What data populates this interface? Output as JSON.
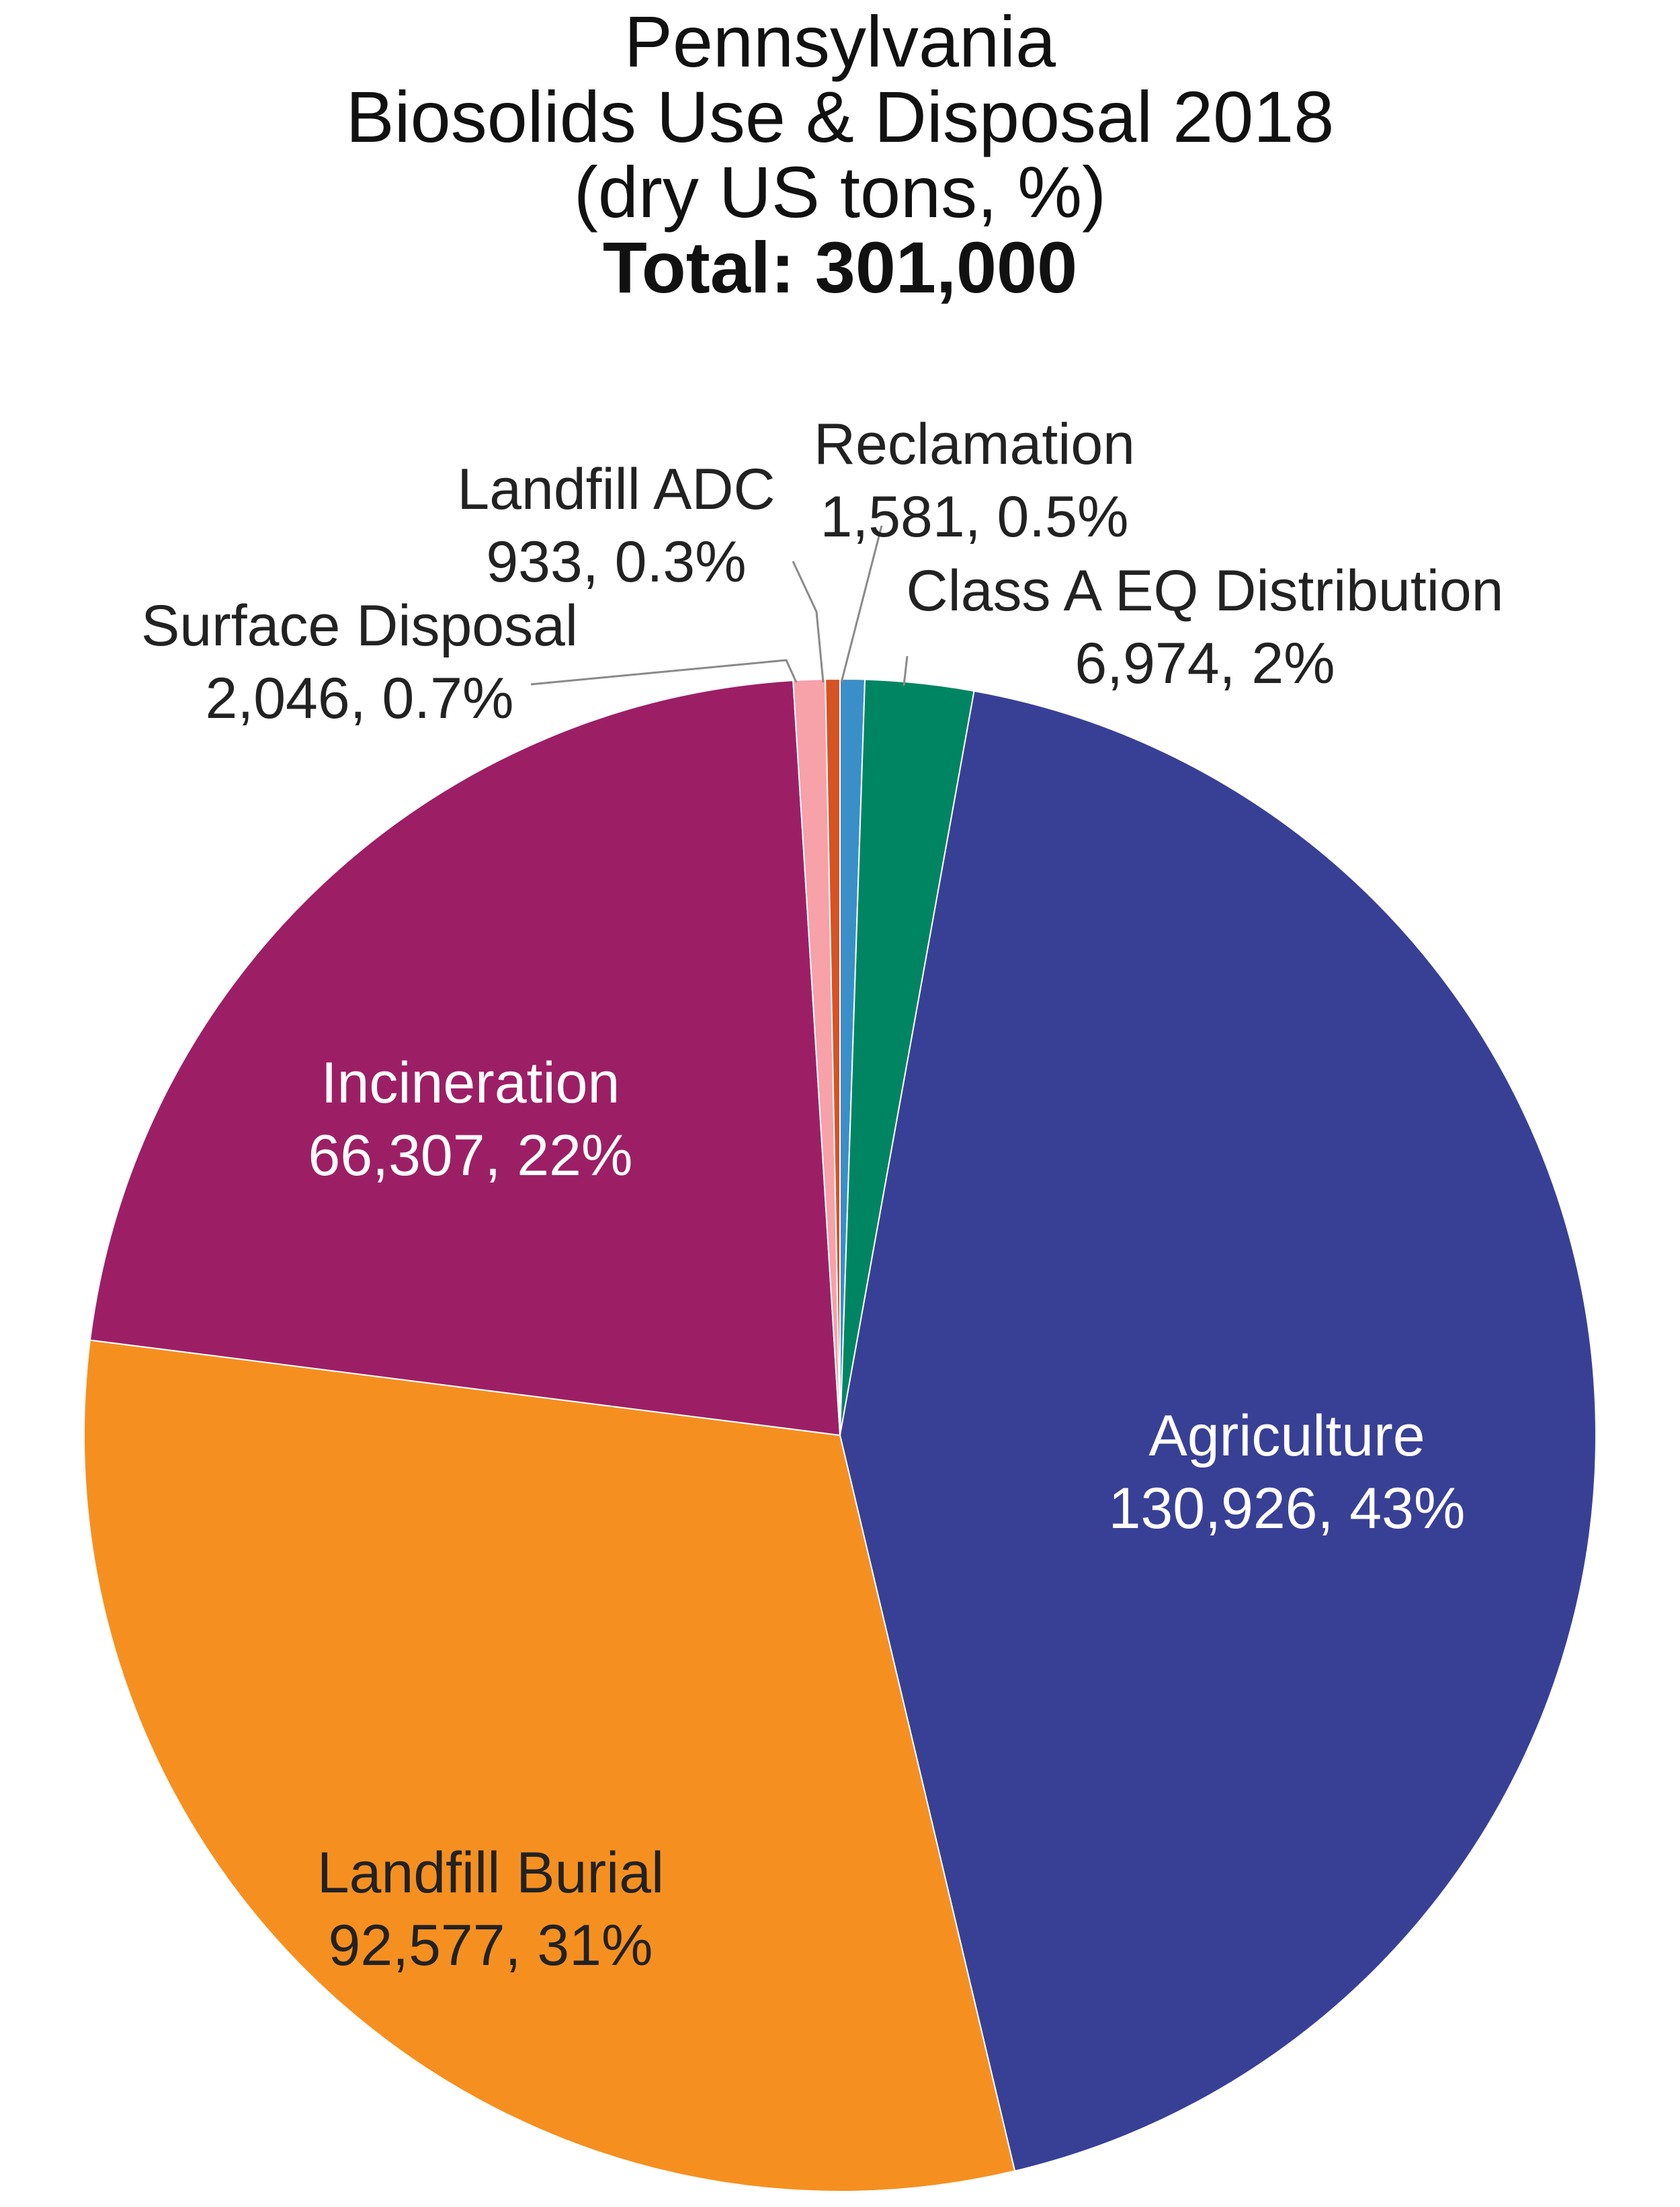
{
  "title": {
    "line1": "Pennsylvania",
    "line2": "Biosolids Use & Disposal 2018",
    "line3": "(dry US tons, %)",
    "line4": "Total: 301,000"
  },
  "chart_data": {
    "type": "pie",
    "title": "Pennsylvania Biosolids Use & Disposal 2018 (dry US tons, %) Total: 301,000",
    "total": 301000,
    "start_angle_deg": 0,
    "direction": "clockwise",
    "slices": [
      {
        "label": "Reclamation",
        "value": 1581,
        "percent": "0.5%",
        "value_text": "1,581, 0.5%",
        "color": "#3a8fc8",
        "label_mode": "callout",
        "label_color": "#222222"
      },
      {
        "label": "Class A EQ Distribution",
        "value": 6974,
        "percent": "2%",
        "value_text": "6,974, 2%",
        "color": "#008563",
        "label_mode": "callout",
        "label_color": "#222222"
      },
      {
        "label": "Agriculture",
        "value": 130926,
        "percent": "43%",
        "value_text": "130,926, 43%",
        "color": "#384096",
        "label_mode": "inside",
        "label_color": "#ffffff"
      },
      {
        "label": "Landfill Burial",
        "value": 92577,
        "percent": "31%",
        "value_text": "92,577, 31%",
        "color": "#f59020",
        "label_mode": "inside",
        "label_color": "#222222"
      },
      {
        "label": "Incineration",
        "value": 66307,
        "percent": "22%",
        "value_text": "66,307, 22%",
        "color": "#9c1f66",
        "label_mode": "inside",
        "label_color": "#ffffff"
      },
      {
        "label": "Surface Disposal",
        "value": 2046,
        "percent": "0.7%",
        "value_text": "2,046, 0.7%",
        "color": "#f7a1a9",
        "label_mode": "callout",
        "label_color": "#222222"
      },
      {
        "label": "Landfill ADC",
        "value": 933,
        "percent": "0.3%",
        "value_text": "933, 0.3%",
        "color": "#d65324",
        "label_mode": "callout",
        "label_color": "#222222"
      }
    ],
    "legend": "none"
  }
}
